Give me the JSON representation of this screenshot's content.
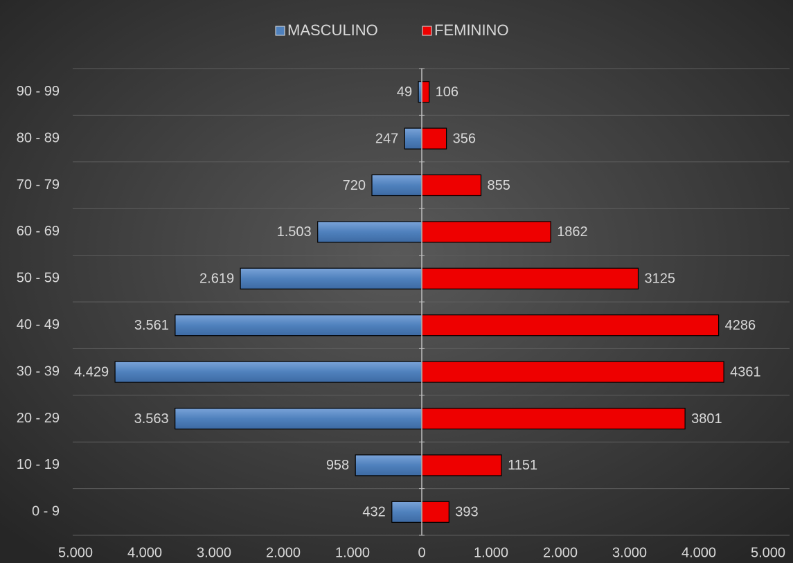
{
  "chart_data": {
    "type": "pyramid",
    "categories": [
      "90 - 99",
      "80 - 89",
      "70 - 79",
      "60 - 69",
      "50 - 59",
      "40 - 49",
      "30 - 39",
      "20 - 29",
      "10 - 19",
      "0 - 9"
    ],
    "series": [
      {
        "name": "MASCULINO",
        "color": "#4f81bd",
        "side": "left",
        "values": [
          49,
          247,
          720,
          1503,
          2619,
          3561,
          4429,
          3563,
          958,
          432
        ],
        "value_labels": [
          "49",
          "247",
          "720",
          "1.503",
          "2.619",
          "3.561",
          "4.429",
          "3.563",
          "958",
          "432"
        ]
      },
      {
        "name": "FEMININO",
        "color": "#ee0000",
        "side": "right",
        "values": [
          106,
          356,
          855,
          1862,
          3125,
          4286,
          4361,
          3801,
          1151,
          393
        ]
      }
    ],
    "xlim": [
      -5000,
      5000
    ],
    "xticks": [
      {
        "value": -5000,
        "label": "5.000"
      },
      {
        "value": -4000,
        "label": "4.000"
      },
      {
        "value": -3000,
        "label": "3.000"
      },
      {
        "value": -2000,
        "label": "2.000"
      },
      {
        "value": -1000,
        "label": "1.000"
      },
      0,
      {
        "value": 1000,
        "label": "1.000"
      },
      {
        "value": 2000,
        "label": "2.000"
      },
      {
        "value": 3000,
        "label": "3.000"
      },
      {
        "value": 4000,
        "label": "4.000"
      },
      {
        "value": 5000,
        "label": "5.000"
      }
    ],
    "grid": true,
    "legend": "top"
  }
}
